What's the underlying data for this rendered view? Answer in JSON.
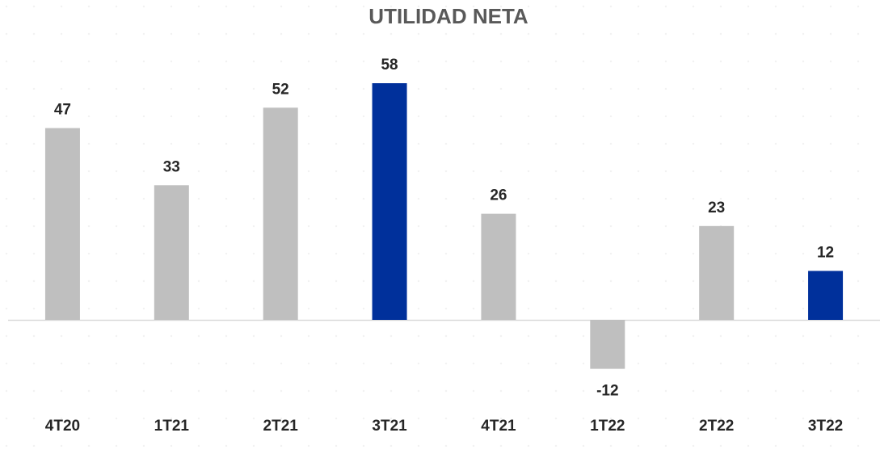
{
  "chart_data": {
    "type": "bar",
    "title": "UTILIDAD NETA",
    "categories": [
      "4T20",
      "1T21",
      "2T21",
      "3T21",
      "4T21",
      "1T22",
      "2T22",
      "3T22"
    ],
    "values": [
      47,
      33,
      52,
      58,
      26,
      -12,
      23,
      12
    ],
    "colors": [
      "#bfbfbf",
      "#bfbfbf",
      "#bfbfbf",
      "#00309b",
      "#bfbfbf",
      "#bfbfbf",
      "#bfbfbf",
      "#00309b"
    ]
  }
}
